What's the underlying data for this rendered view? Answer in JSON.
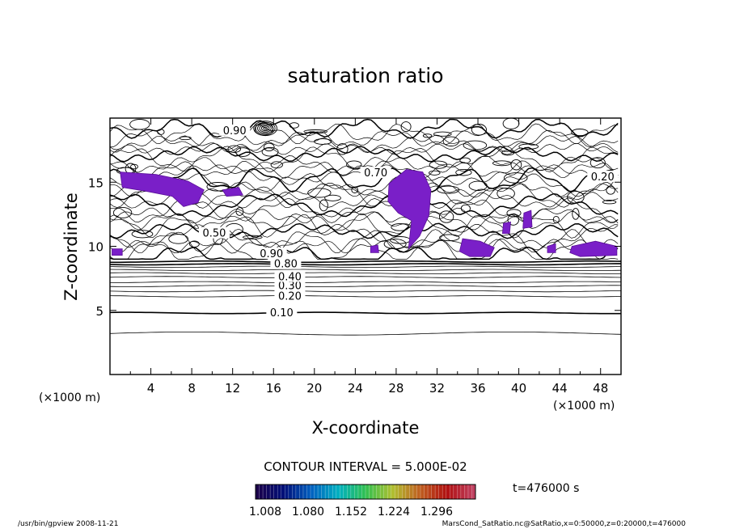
{
  "chart_data": {
    "type": "contour",
    "title": "saturation ratio",
    "xlabel": "X-coordinate",
    "ylabel": "Z-coordinate",
    "x_unit_left": "(×1000 m)",
    "x_unit_right": "(×1000 m)",
    "xlim": [
      0,
      50
    ],
    "ylim": [
      0,
      20
    ],
    "x_ticks": [
      4,
      8,
      12,
      16,
      20,
      24,
      28,
      32,
      36,
      40,
      44,
      48
    ],
    "y_ticks": [
      5,
      10,
      15
    ],
    "contour_interval_text": "CONTOUR INTERVAL = 5.000E-02",
    "contour_labels": [
      "0.10",
      "0.20",
      "0.30",
      "0.40",
      "0.80",
      "0.90",
      "0.70",
      "0.50"
    ],
    "labeled_levels": [
      {
        "text": "0.10",
        "x": 16.8,
        "z": 4.8
      },
      {
        "text": "0.20",
        "x": 17.6,
        "z": 6.1
      },
      {
        "text": "0.30",
        "x": 17.6,
        "z": 6.9
      },
      {
        "text": "0.40",
        "x": 17.6,
        "z": 7.6
      },
      {
        "text": "0.80",
        "x": 17.2,
        "z": 8.6
      },
      {
        "text": "0.90",
        "x": 15.8,
        "z": 9.4
      },
      {
        "text": "0.50",
        "x": 10.2,
        "z": 11.0
      },
      {
        "text": "0.90",
        "x": 12.2,
        "z": 19.0
      },
      {
        "text": "0.70",
        "x": 26.0,
        "z": 15.7
      },
      {
        "text": "0.20",
        "x": 48.2,
        "z": 15.4
      }
    ],
    "shaded_regions_note_values": [
      1.008,
      1.08,
      1.152,
      1.224,
      1.296
    ],
    "colorbar": {
      "tick_labels": [
        "1.008",
        "1.080",
        "1.152",
        "1.224",
        "1.296"
      ],
      "colors": [
        "#1a004a",
        "#00107a",
        "#0060c0",
        "#00b0c0",
        "#30c050",
        "#b0c030",
        "#c06020",
        "#b01010",
        "#c04060"
      ]
    },
    "time_label": "t=476000 s",
    "shade_color": "#7a1fc8"
  },
  "footer": {
    "left": "/usr/bin/gpview   2008-11-21",
    "right": "MarsCond_SatRatio.nc@SatRatio,x=0:50000,z=0:20000,t=476000"
  }
}
